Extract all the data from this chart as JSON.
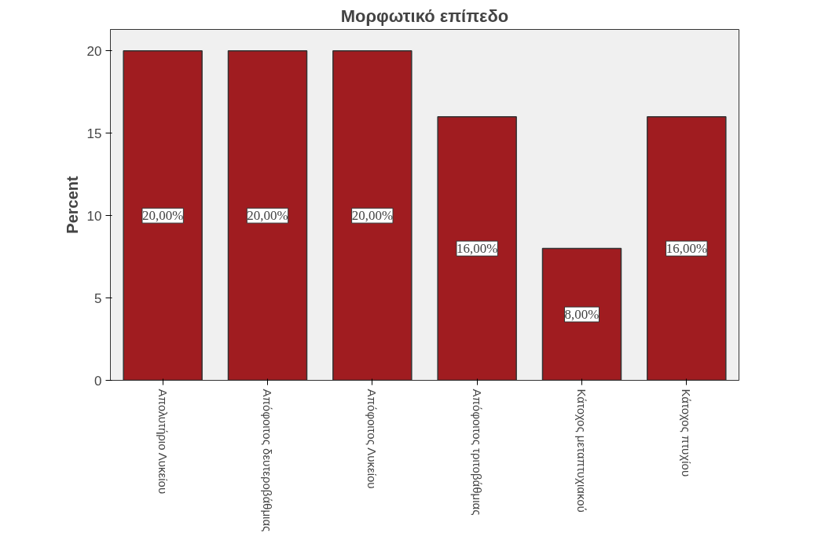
{
  "chart_data": {
    "type": "bar",
    "title": "Μορφωτικό επίπεδο",
    "ylabel": "Percent",
    "categories": [
      "Απολυτήριο Λυκείου",
      "Απόφοιτος δευτεροβάθμιας",
      "Απόφοιτος Λυκείου",
      "Απόφοιτος τριτοβάθμιας",
      "Κάτοχος μεταπτυχιακού",
      "Κάτοχος πτυχίου"
    ],
    "values": [
      20,
      20,
      20,
      16,
      8,
      16
    ],
    "value_labels": [
      "20,00%",
      "20,00%",
      "20,00%",
      "16,00%",
      "8,00%",
      "16,00%"
    ],
    "color": "#a01c20",
    "ylim": [
      0,
      21.3
    ],
    "yticks": [
      0,
      5,
      10,
      15,
      20
    ],
    "grid": false
  }
}
